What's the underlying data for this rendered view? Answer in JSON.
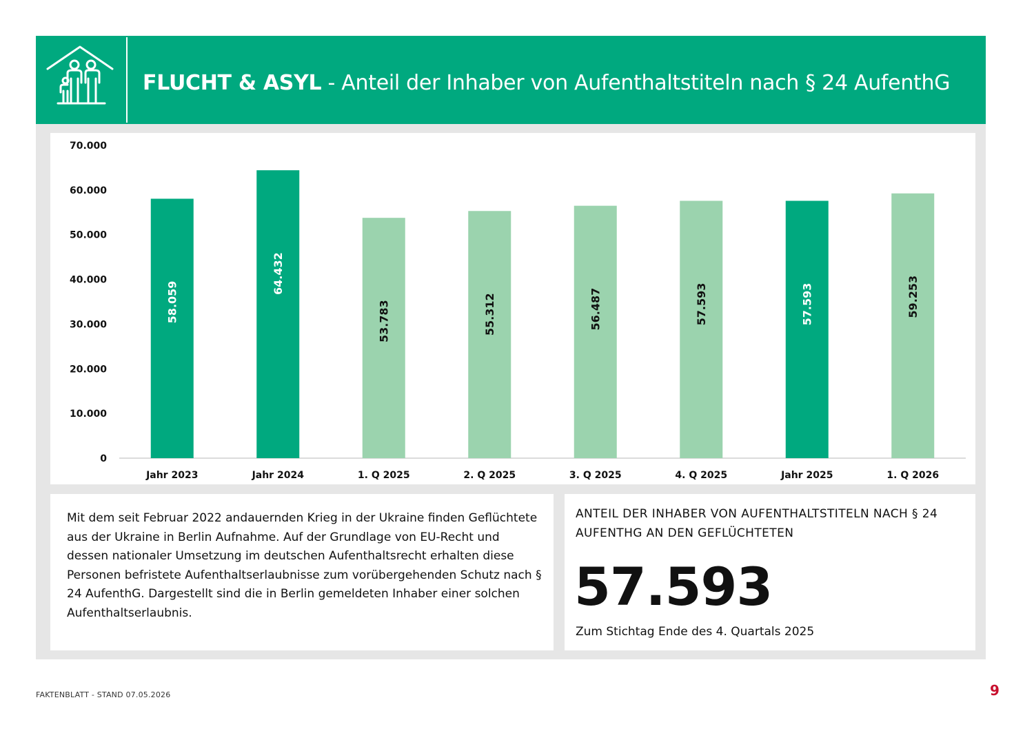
{
  "header": {
    "title_bold": "FLUCHT & ASYL",
    "title_rest": " - Anteil der Inhaber von Aufenthaltstiteln nach § 24 AufenthG",
    "logo_icon": "family-house-icon"
  },
  "chart_data": {
    "type": "bar",
    "categories": [
      "Jahr 2023",
      "Jahr 2024",
      "1. Q 2025",
      "2. Q 2025",
      "3. Q 2025",
      "4. Q 2025",
      "Jahr 2025",
      "1. Q 2026"
    ],
    "values": [
      58059,
      64432,
      53783,
      55312,
      56487,
      57593,
      57593,
      59253
    ],
    "value_labels": [
      "58.059",
      "64.432",
      "53.783",
      "55.312",
      "56.487",
      "57.593",
      "57.593",
      "59.253"
    ],
    "bar_kind": [
      "year",
      "year",
      "quarter",
      "quarter",
      "quarter",
      "quarter",
      "year",
      "quarter"
    ],
    "colors": {
      "year": "#00a97f",
      "quarter": "#9bd3ae"
    },
    "y_ticks": [
      "0",
      "10.000",
      "20.000",
      "30.000",
      "40.000",
      "50.000",
      "60.000",
      "70.000"
    ],
    "ylim": [
      0,
      70000
    ],
    "grid": false,
    "legend": "none"
  },
  "text_panel": {
    "body": "Mit dem seit Februar 2022 andauernden Krieg in der Ukraine finden Geflüchtete aus der Ukraine in Berlin Aufnahme. Auf der Grundlage von EU-Recht und dessen nationaler Umsetzung im deutschen Aufenthaltsrecht erhalten diese Personen befristete Aufenthaltserlaubnisse zum vorübergehenden Schutz nach § 24 AufenthG. Dargestellt sind die in Berlin gemeldeten Inhaber einer solchen Aufenthaltserlaubnis."
  },
  "kpi": {
    "label": "ANTEIL DER INHABER VON AUFENTHALTSTITELN NACH § 24 AUFENTHG AN DEN GEFLÜCHTETEN",
    "value": "57.593",
    "note": "Zum Stichtag Ende des 4. Quartals 2025"
  },
  "footer": {
    "text": "FAKTENBLATT - STAND 07.05.2026",
    "page_number": "9"
  }
}
